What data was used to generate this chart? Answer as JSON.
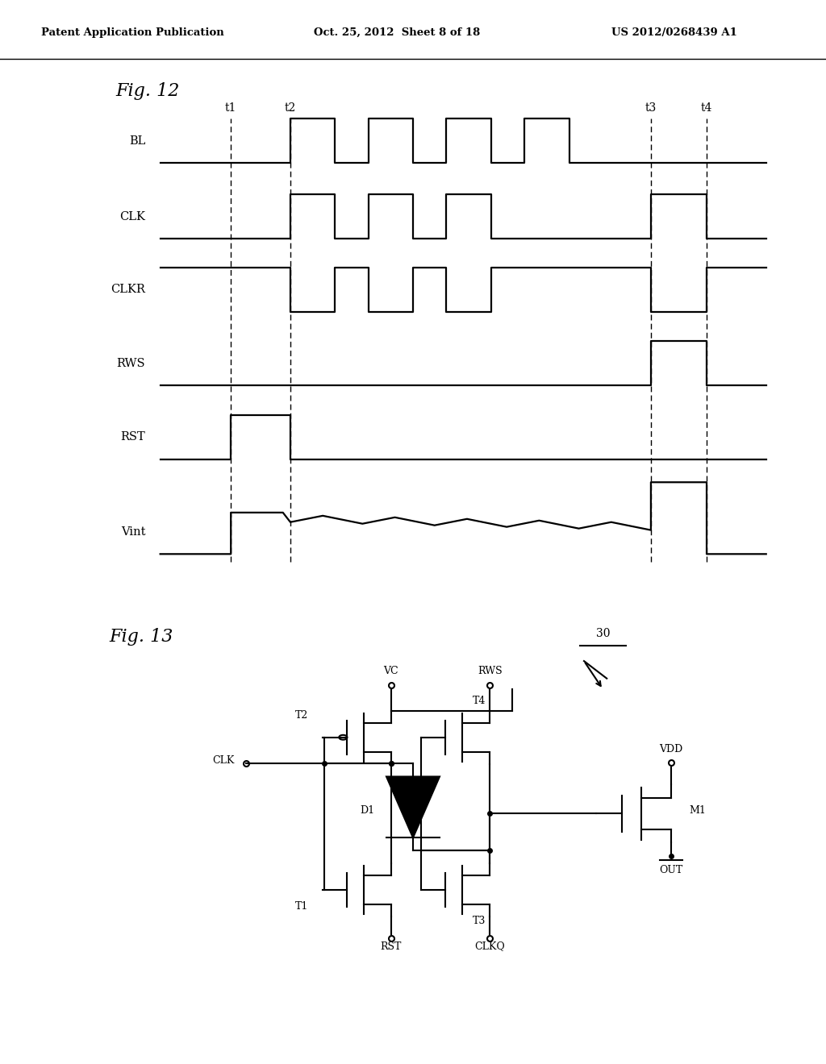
{
  "header_left": "Patent Application Publication",
  "header_center": "Oct. 25, 2012  Sheet 8 of 18",
  "header_right": "US 2012/0268439 A1",
  "fig12_label": "Fig. 12",
  "fig13_label": "Fig. 13",
  "signals": [
    "BL",
    "CLK",
    "CLKR",
    "RWS",
    "RST",
    "Vint"
  ],
  "t_labels": [
    "t1",
    "t2",
    "t3",
    "t4"
  ],
  "bg_color": "#ffffff",
  "line_color": "#000000"
}
